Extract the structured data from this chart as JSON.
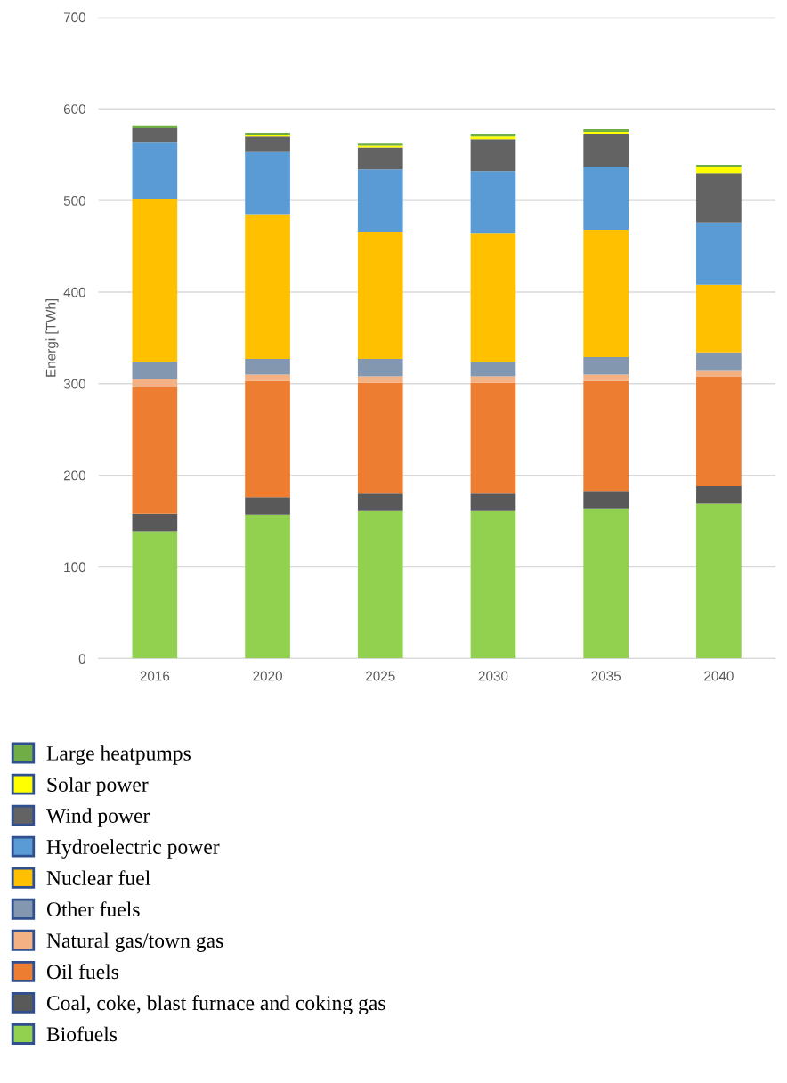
{
  "chart_data": {
    "type": "bar",
    "stacked": true,
    "ylabel": "Energi [TWh]",
    "categories": [
      "2016",
      "2020",
      "2025",
      "2030",
      "2035",
      "2040"
    ],
    "series": [
      {
        "name": "Biofuels",
        "color": "#92d050",
        "values": [
          139,
          157,
          161,
          161,
          164,
          169
        ]
      },
      {
        "name": "Coal, coke, blast furnace and coking gas",
        "color": "#595959",
        "values": [
          19,
          19,
          19,
          19,
          19,
          19
        ]
      },
      {
        "name": "Oil fuels",
        "color": "#ed7d31",
        "values": [
          138,
          127,
          121,
          121,
          120,
          120
        ]
      },
      {
        "name": "Natural gas/town gas",
        "color": "#f4b183",
        "values": [
          9,
          7,
          7,
          7,
          7,
          7
        ]
      },
      {
        "name": "Other fuels",
        "color": "#8497b0",
        "values": [
          19,
          17,
          19,
          16,
          19,
          19
        ]
      },
      {
        "name": "Nuclear fuel",
        "color": "#ffc000",
        "values": [
          177,
          158,
          139,
          140,
          139,
          74
        ]
      },
      {
        "name": "Hydroelectric power",
        "color": "#5b9bd5",
        "values": [
          62,
          68,
          68,
          68,
          68,
          68
        ]
      },
      {
        "name": "Wind power",
        "color": "#636363",
        "values": [
          16,
          17,
          24,
          35,
          36,
          54
        ]
      },
      {
        "name": "Solar power",
        "color": "#ffff00",
        "values": [
          0,
          1,
          2,
          3,
          3,
          7
        ]
      },
      {
        "name": "Large heatpumps",
        "color": "#70ad47",
        "values": [
          3,
          3,
          2,
          3,
          3,
          2
        ]
      }
    ],
    "ylim": [
      0,
      700
    ],
    "yticks": [
      0,
      100,
      200,
      300,
      400,
      500,
      600,
      700
    ],
    "grid": "y",
    "legend": "bottom"
  }
}
